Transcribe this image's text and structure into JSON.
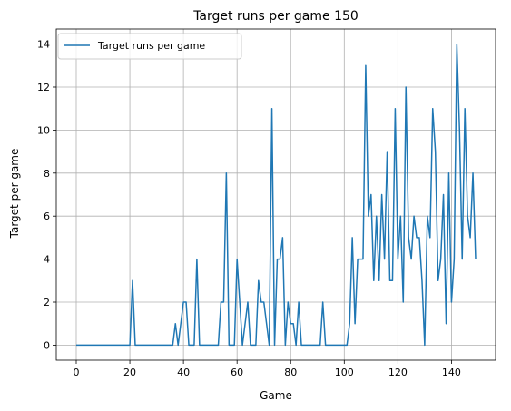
{
  "chart_data": {
    "type": "line",
    "title": "Target runs per game 150",
    "xlabel": "Game",
    "ylabel": "Target per game",
    "xlim": [
      -7.45,
      156.45
    ],
    "ylim": [
      -0.7,
      14.7
    ],
    "xticks": [
      0,
      20,
      40,
      60,
      80,
      100,
      120,
      140
    ],
    "yticks": [
      0,
      2,
      4,
      6,
      8,
      10,
      12,
      14
    ],
    "grid": true,
    "legend_position": "top-left",
    "series": [
      {
        "name": "Target runs per game",
        "color": "#1f77b4",
        "x": [
          0,
          1,
          2,
          3,
          4,
          5,
          6,
          7,
          8,
          9,
          10,
          11,
          12,
          13,
          14,
          15,
          16,
          17,
          18,
          19,
          20,
          21,
          22,
          23,
          24,
          25,
          26,
          27,
          28,
          29,
          30,
          31,
          32,
          33,
          34,
          35,
          36,
          37,
          38,
          39,
          40,
          41,
          42,
          43,
          44,
          45,
          46,
          47,
          48,
          49,
          50,
          51,
          52,
          53,
          54,
          55,
          56,
          57,
          58,
          59,
          60,
          61,
          62,
          63,
          64,
          65,
          66,
          67,
          68,
          69,
          70,
          71,
          72,
          73,
          74,
          75,
          76,
          77,
          78,
          79,
          80,
          81,
          82,
          83,
          84,
          85,
          86,
          87,
          88,
          89,
          90,
          91,
          92,
          93,
          94,
          95,
          96,
          97,
          98,
          99,
          100,
          101,
          102,
          103,
          104,
          105,
          106,
          107,
          108,
          109,
          110,
          111,
          112,
          113,
          114,
          115,
          116,
          117,
          118,
          119,
          120,
          121,
          122,
          123,
          124,
          125,
          126,
          127,
          128,
          129,
          130,
          131,
          132,
          133,
          134,
          135,
          136,
          137,
          138,
          139,
          140,
          141,
          142,
          143,
          144,
          145,
          146,
          147,
          148,
          149
        ],
        "values": [
          0,
          0,
          0,
          0,
          0,
          0,
          0,
          0,
          0,
          0,
          0,
          0,
          0,
          0,
          0,
          0,
          0,
          0,
          0,
          0,
          0,
          3,
          0,
          0,
          0,
          0,
          0,
          0,
          0,
          0,
          0,
          0,
          0,
          0,
          0,
          0,
          0,
          1,
          0,
          1,
          2,
          2,
          0,
          0,
          0,
          4,
          0,
          0,
          0,
          0,
          0,
          0,
          0,
          0,
          2,
          2,
          8,
          0,
          0,
          0,
          4,
          2,
          0,
          1,
          2,
          0,
          0,
          0,
          3,
          2,
          2,
          1,
          0,
          11,
          0,
          4,
          4,
          5,
          0,
          2,
          1,
          1,
          0,
          2,
          0,
          0,
          0,
          0,
          0,
          0,
          0,
          0,
          2,
          0,
          0,
          0,
          0,
          0,
          0,
          0,
          0,
          0,
          1,
          5,
          1,
          4,
          4,
          4,
          13,
          6,
          7,
          3,
          6,
          3,
          7,
          4,
          9,
          3,
          3,
          11,
          4,
          6,
          2,
          12,
          5,
          4,
          6,
          5,
          5,
          3,
          0,
          6,
          5,
          11,
          9,
          3,
          4,
          7,
          1,
          8,
          2,
          4,
          14,
          10,
          4,
          11,
          6,
          5,
          8,
          4
        ]
      }
    ]
  }
}
